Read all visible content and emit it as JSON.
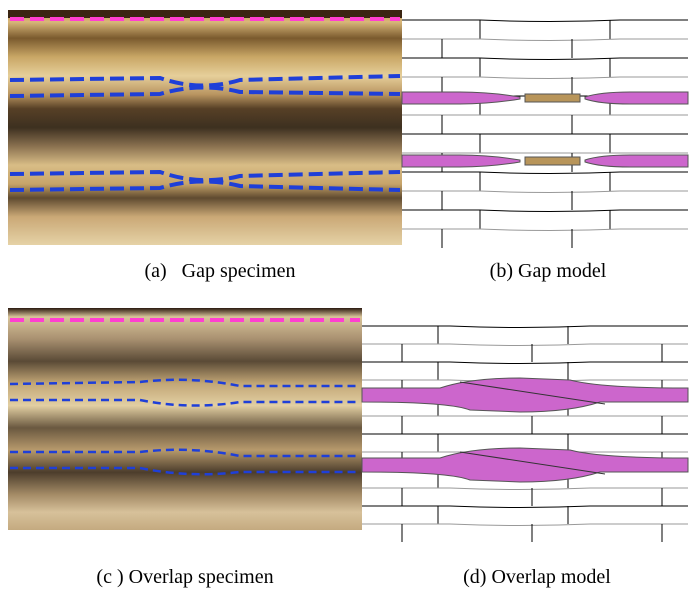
{
  "panels": [
    {
      "caption": "(a)   Gap specimen"
    },
    {
      "caption": "(b) Gap model"
    },
    {
      "caption": "(c ) Overlap specimen"
    },
    {
      "caption": "(d) Overlap model"
    }
  ]
}
